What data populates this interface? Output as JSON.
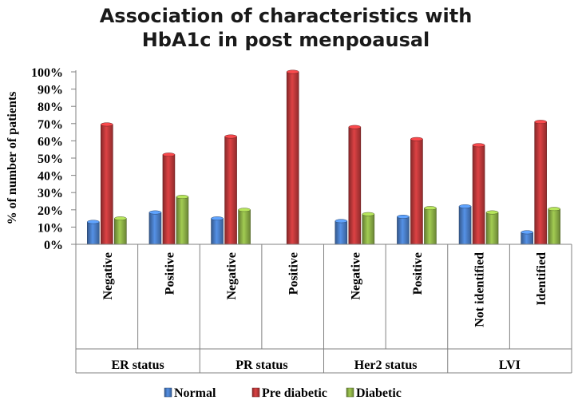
{
  "chart_data": {
    "type": "bar",
    "title_lines": [
      "Association of characteristics with",
      "HbA1c in post menpoausal"
    ],
    "ylabel": "% of number of patients",
    "ylim": [
      0,
      100
    ],
    "yticks": [
      "0%",
      "10%",
      "20%",
      "30%",
      "40%",
      "50%",
      "60%",
      "70%",
      "80%",
      "90%",
      "100%"
    ],
    "categories": [
      "Negative",
      "Positive",
      "Negative",
      "Positive",
      "Negative",
      "Positive",
      "Not identified",
      "Identified"
    ],
    "groups": [
      {
        "label": "ER status",
        "span": 2
      },
      {
        "label": "PR status",
        "span": 2
      },
      {
        "label": "Her2 status",
        "span": 2
      },
      {
        "label": "LVI",
        "span": 2
      }
    ],
    "series": [
      {
        "name": "Normal",
        "color": "#4a7ec8",
        "values": [
          13,
          18.5,
          15,
          0,
          13.5,
          16,
          22,
          7
        ]
      },
      {
        "name": "Pre diabetic",
        "color": "#c0393b",
        "values": [
          69.5,
          52,
          62.5,
          100,
          68,
          61,
          57.5,
          71
        ]
      },
      {
        "name": "Diabetic",
        "color": "#8db147",
        "values": [
          15,
          27.5,
          20,
          0,
          17.5,
          21,
          18.5,
          20.5
        ]
      }
    ],
    "legend_position": "bottom",
    "grid": false
  }
}
